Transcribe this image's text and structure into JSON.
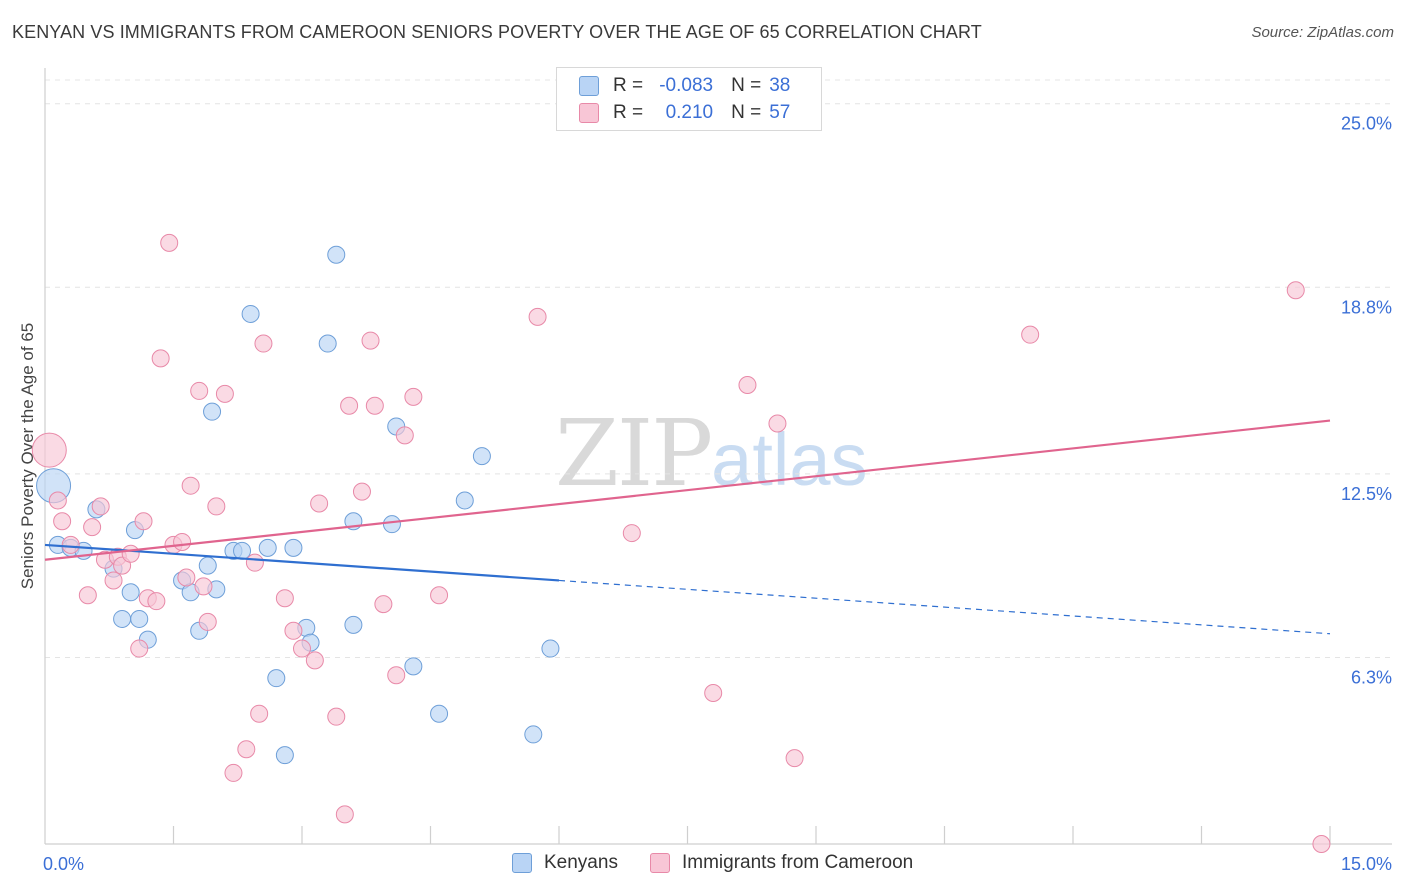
{
  "title": "KENYAN VS IMMIGRANTS FROM CAMEROON SENIORS POVERTY OVER THE AGE OF 65 CORRELATION CHART",
  "source": "Source: ZipAtlas.com",
  "watermark": {
    "zip": "ZIP",
    "atlas": "atlas"
  },
  "legend": {
    "r_label": "R =",
    "n_label": "N =",
    "rows": [
      {
        "r": "-0.083",
        "n": "38"
      },
      {
        "r": "0.210",
        "n": "57"
      }
    ]
  },
  "colors": {
    "kenyans_fill": "#b9d4f5",
    "kenyans_stroke": "#6e9fd8",
    "kenyans_line": "#2f6fd0",
    "cameroon_fill": "#f8c6d6",
    "cameroon_stroke": "#e889a8",
    "cameroon_line": "#e0648e",
    "tick_label": "#3b6fd6",
    "grid": "#e4e4e4"
  },
  "chart_data": {
    "type": "scatter",
    "title": "KENYAN VS IMMIGRANTS FROM CAMEROON SENIORS POVERTY OVER THE AGE OF 65 CORRELATION CHART",
    "xlabel": "",
    "ylabel": "Seniors Poverty Over the Age of 65",
    "xlim": [
      0,
      15
    ],
    "ylim": [
      0,
      25.8
    ],
    "x_tick_labels": [
      "0.0%",
      "15.0%"
    ],
    "y_ticks": [
      6.3,
      12.5,
      18.8,
      25.0
    ],
    "y_tick_labels": [
      "6.3%",
      "12.5%",
      "18.8%",
      "25.0%"
    ],
    "grid": true,
    "legend_position": "top-center",
    "series": [
      {
        "name": "Kenyans",
        "r": -0.083,
        "n": 38,
        "trend": {
          "x": [
            0,
            6.0
          ],
          "y": [
            10.1,
            8.9
          ],
          "dashed_to": [
            15,
            7.1
          ]
        },
        "points": [
          [
            0.1,
            12.1,
            "large"
          ],
          [
            0.15,
            10.1
          ],
          [
            0.3,
            10.0
          ],
          [
            0.45,
            9.9
          ],
          [
            0.6,
            11.3
          ],
          [
            0.8,
            9.3
          ],
          [
            0.9,
            7.6
          ],
          [
            1.05,
            10.6
          ],
          [
            1.1,
            7.6
          ],
          [
            1.2,
            6.9
          ],
          [
            1.0,
            8.5
          ],
          [
            1.6,
            8.9
          ],
          [
            1.7,
            8.5
          ],
          [
            1.8,
            7.2
          ],
          [
            1.9,
            9.4
          ],
          [
            1.95,
            14.6
          ],
          [
            2.0,
            8.6
          ],
          [
            2.2,
            9.9
          ],
          [
            2.4,
            17.9
          ],
          [
            2.6,
            10.0
          ],
          [
            2.7,
            5.6
          ],
          [
            2.8,
            3.0
          ],
          [
            2.9,
            10.0
          ],
          [
            3.05,
            7.3
          ],
          [
            3.1,
            6.8
          ],
          [
            3.3,
            16.9
          ],
          [
            3.4,
            19.9
          ],
          [
            3.6,
            10.9
          ],
          [
            3.6,
            7.4
          ],
          [
            4.05,
            10.8
          ],
          [
            4.1,
            14.1
          ],
          [
            4.3,
            6.0
          ],
          [
            4.6,
            4.4
          ],
          [
            4.9,
            11.6
          ],
          [
            5.1,
            13.1
          ],
          [
            5.7,
            3.7
          ],
          [
            5.9,
            6.6
          ],
          [
            2.3,
            9.9
          ]
        ]
      },
      {
        "name": "Immigrants from Cameroon",
        "r": 0.21,
        "n": 57,
        "trend": {
          "x": [
            0,
            15
          ],
          "y": [
            9.6,
            14.3
          ]
        },
        "points": [
          [
            0.05,
            13.3,
            "large"
          ],
          [
            0.15,
            11.6
          ],
          [
            0.2,
            10.9
          ],
          [
            0.3,
            10.1
          ],
          [
            0.5,
            8.4
          ],
          [
            0.55,
            10.7
          ],
          [
            0.65,
            11.4
          ],
          [
            0.7,
            9.6
          ],
          [
            0.8,
            8.9
          ],
          [
            0.85,
            9.7
          ],
          [
            0.9,
            9.4
          ],
          [
            1.0,
            9.8
          ],
          [
            1.1,
            6.6
          ],
          [
            1.15,
            10.9
          ],
          [
            1.2,
            8.3
          ],
          [
            1.3,
            8.2
          ],
          [
            1.35,
            16.4
          ],
          [
            1.45,
            20.3
          ],
          [
            1.5,
            10.1
          ],
          [
            1.6,
            10.2
          ],
          [
            1.65,
            9.0
          ],
          [
            1.7,
            12.1
          ],
          [
            1.8,
            15.3
          ],
          [
            1.85,
            8.7
          ],
          [
            1.9,
            7.5
          ],
          [
            2.0,
            11.4
          ],
          [
            2.1,
            15.2
          ],
          [
            2.2,
            2.4
          ],
          [
            2.35,
            3.2
          ],
          [
            2.45,
            9.5
          ],
          [
            2.5,
            4.4
          ],
          [
            2.55,
            16.9
          ],
          [
            2.8,
            8.3
          ],
          [
            2.9,
            7.2
          ],
          [
            3.0,
            6.6
          ],
          [
            3.15,
            6.2
          ],
          [
            3.2,
            11.5
          ],
          [
            3.4,
            4.3
          ],
          [
            3.5,
            1.0
          ],
          [
            3.55,
            14.8
          ],
          [
            3.7,
            11.9
          ],
          [
            3.8,
            17.0
          ],
          [
            3.85,
            14.8
          ],
          [
            3.95,
            8.1
          ],
          [
            4.1,
            5.7
          ],
          [
            4.2,
            13.8
          ],
          [
            4.3,
            15.1
          ],
          [
            4.6,
            8.4
          ],
          [
            5.75,
            17.8
          ],
          [
            6.85,
            10.5
          ],
          [
            7.8,
            5.1
          ],
          [
            8.2,
            15.5
          ],
          [
            8.55,
            14.2
          ],
          [
            8.75,
            2.9
          ],
          [
            11.5,
            17.2
          ],
          [
            14.6,
            18.7
          ],
          [
            14.9,
            0.0
          ]
        ]
      }
    ]
  },
  "axes": {
    "x_left_label": "0.0%",
    "x_right_label": "15.0%",
    "y_labels": [
      "25.0%",
      "18.8%",
      "12.5%",
      "6.3%"
    ]
  },
  "bottom_legend": [
    "Kenyans",
    "Immigrants from Cameroon"
  ]
}
